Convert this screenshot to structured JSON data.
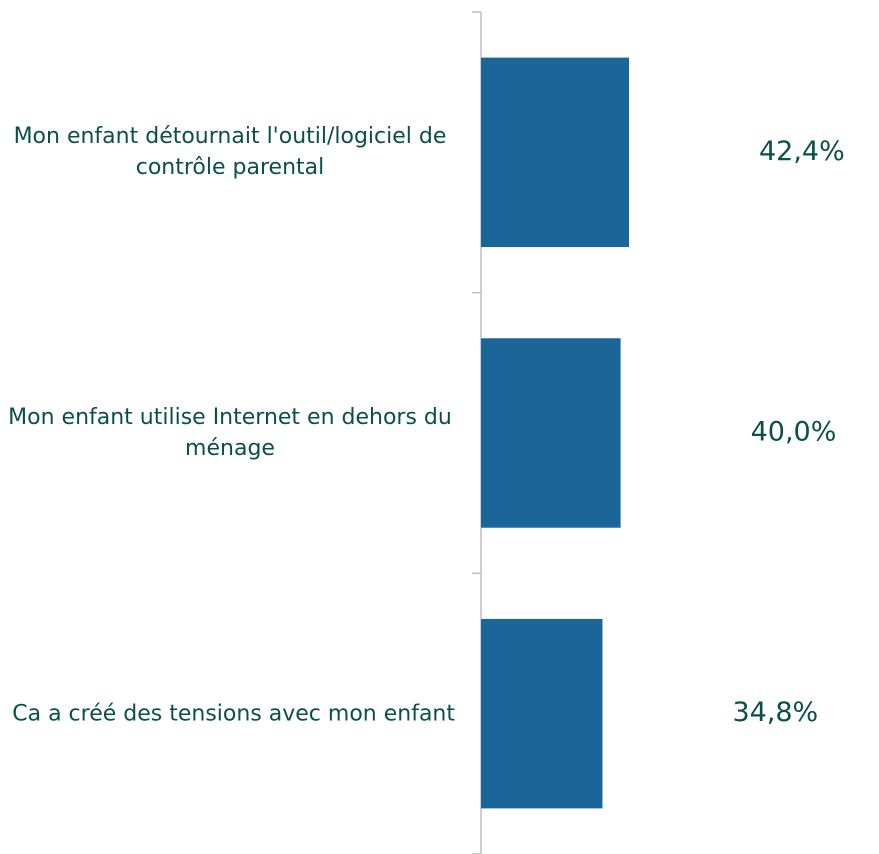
{
  "chart_data": {
    "type": "barh",
    "categories": [
      "Mon enfant détournait l'outil/logiciel de contrôle parental",
      "Mon enfant utilise Internet en dehors du ménage",
      "Ca a créé des tensions avec mon enfant"
    ],
    "values": [
      42.4,
      40.0,
      34.8
    ],
    "value_labels": [
      "42,4%",
      "40,0%",
      "34,8%"
    ],
    "color": "#1a6699",
    "xlim": [
      0,
      100
    ]
  }
}
